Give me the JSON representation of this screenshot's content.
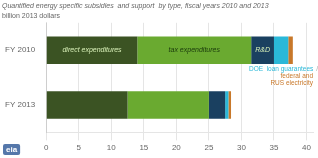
{
  "chart_data": {
    "type": "bar",
    "orientation": "horizontal",
    "stacked": true,
    "title": "Quantified energy specific subsidies  and support  by type, fiscal years 2010 and 2013",
    "subtitle": "billion 2013 dollars",
    "categories": [
      "FY 2010",
      "FY 2013"
    ],
    "series": [
      {
        "name": "direct expenditures",
        "color": "#3b5323",
        "values": [
          14.0,
          12.5
        ]
      },
      {
        "name": "tax expenditures",
        "color": "#6aaa30",
        "values": [
          17.5,
          12.5
        ]
      },
      {
        "name": "R&D",
        "color": "#1a4060",
        "values": [
          3.5,
          2.5
        ]
      },
      {
        "name": "DOE  loan guarantees",
        "color": "#2ab8d8",
        "values": [
          2.2,
          0.5
        ]
      },
      {
        "name": "federal and\nRUS electricity",
        "color": "#c8782a",
        "values": [
          0.7,
          0.4
        ]
      }
    ],
    "xlim": [
      0,
      41
    ],
    "xticks": [
      0,
      5,
      10,
      15,
      20,
      25,
      30,
      35,
      40
    ],
    "grid": true,
    "annotations": [
      "/",
      "eia"
    ]
  }
}
